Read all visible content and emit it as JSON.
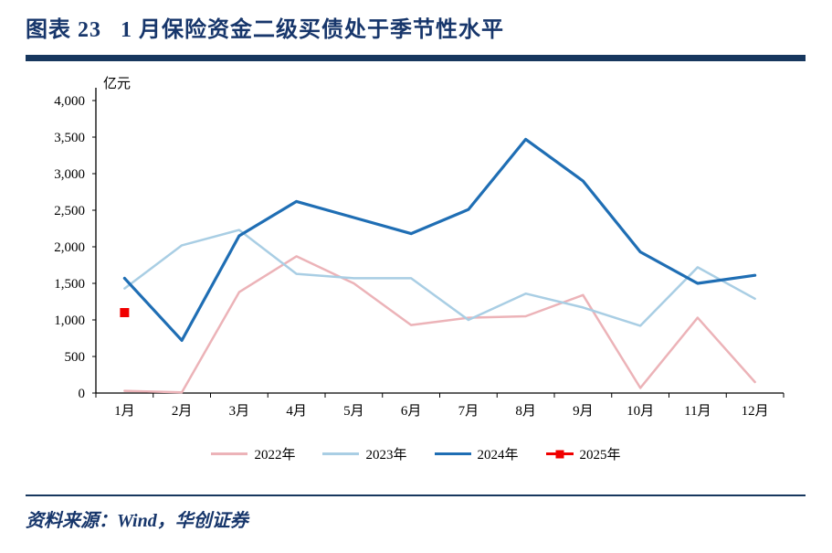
{
  "header": {
    "title": "图表 23   1 月保险资金二级买债处于季节性水平"
  },
  "chart_data": {
    "type": "line",
    "title": "1月保险资金二级买债处于季节性水平",
    "unit_label": "亿元",
    "xlabel": "",
    "ylabel": "亿元",
    "ylim": [
      0,
      4000
    ],
    "ytick_step": 500,
    "grid": false,
    "legend_position": "bottom",
    "categories": [
      "1月",
      "2月",
      "3月",
      "4月",
      "5月",
      "6月",
      "7月",
      "8月",
      "9月",
      "10月",
      "11月",
      "12月"
    ],
    "series": [
      {
        "name": "2022年",
        "style": "line",
        "color": "#ecb3b8",
        "width": 2.5,
        "values": [
          30,
          10,
          1380,
          1870,
          1500,
          930,
          1030,
          1050,
          1340,
          70,
          1030,
          150
        ]
      },
      {
        "name": "2023年",
        "style": "line",
        "color": "#a9cee4",
        "width": 2.5,
        "values": [
          1430,
          2020,
          2230,
          1630,
          1570,
          1570,
          1000,
          1360,
          1170,
          920,
          1720,
          1290
        ]
      },
      {
        "name": "2024年",
        "style": "line",
        "color": "#1f6eb4",
        "width": 3.2,
        "values": [
          1570,
          720,
          2150,
          2620,
          2400,
          2180,
          2510,
          3470,
          2900,
          1930,
          1500,
          1610
        ]
      },
      {
        "name": "2025年",
        "style": "square-point",
        "color": "#f00000",
        "width": 2.5,
        "values": [
          1100,
          null,
          null,
          null,
          null,
          null,
          null,
          null,
          null,
          null,
          null,
          null
        ]
      }
    ]
  },
  "footer": {
    "source": "资料来源：Wind，华创证券"
  }
}
